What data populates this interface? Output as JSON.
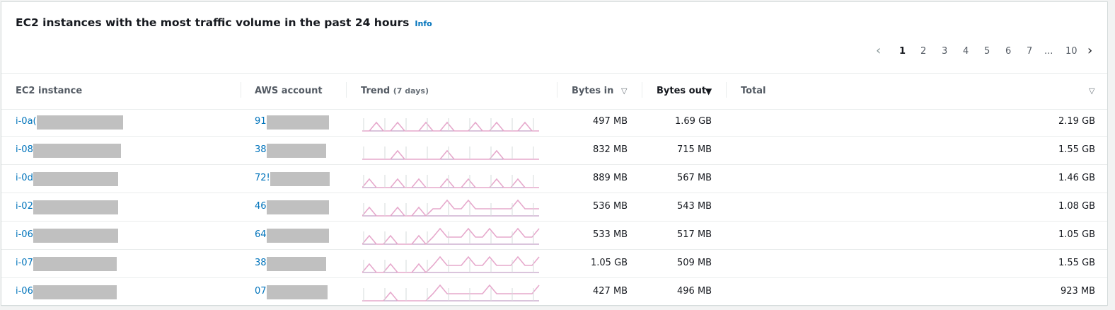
{
  "header": {
    "title": "EC2 instances with the most traffic volume in the past 24 hours",
    "info": "Info"
  },
  "pagination": {
    "pages": [
      "1",
      "2",
      "3",
      "4",
      "5",
      "6",
      "7",
      "...",
      "10"
    ]
  },
  "table": {
    "columns": [
      {
        "label": "EC2 instance"
      },
      {
        "label": "AWS account"
      },
      {
        "label": "Trend",
        "note": "(7 days)"
      },
      {
        "label": "Bytes in",
        "sortable": true
      },
      {
        "label": "Bytes out",
        "sortable": true,
        "sorted": "descending"
      },
      {
        "label": "Total",
        "sortable": true
      }
    ],
    "rows": [
      [
        "i-0a(",
        "91",
        "497 MB",
        "1.69 GB",
        "2.19 GB"
      ],
      [
        "i-08",
        "38",
        "832 MB",
        "715 MB",
        "1.55 GB"
      ],
      [
        "i-0d",
        "72!",
        "889 MB",
        "567 MB",
        "1.46 GB"
      ],
      [
        "i-02",
        "46",
        "536 MB",
        "543 MB",
        "1.08 GB"
      ],
      [
        "i-06",
        "64",
        "533 MB",
        "517 MB",
        "1.05 GB"
      ],
      [
        "i-07",
        "38",
        "1.05 GB",
        "509 MB",
        "1.55 GB"
      ],
      [
        "i-06",
        "07",
        "427 MB",
        "496 MB",
        "923 MB"
      ]
    ]
  }
}
